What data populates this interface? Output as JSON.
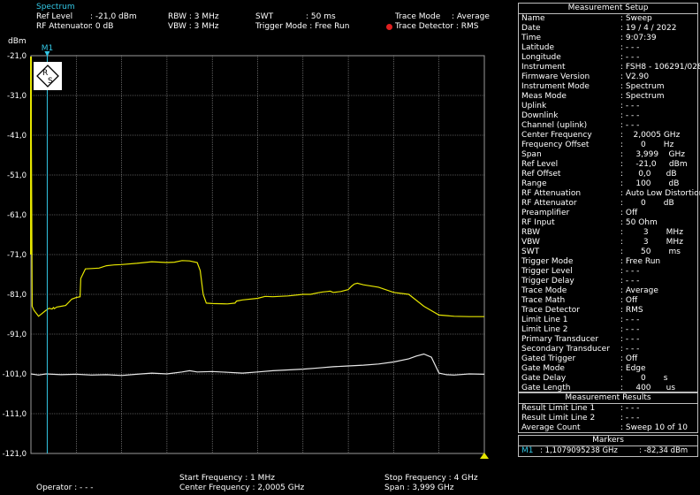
{
  "header": {
    "mode": "Spectrum",
    "ref_level_label": "Ref Level",
    "ref_level_value": ": -21,0 dBm",
    "rf_att_label": "RF Attenuator",
    "rf_att_value": ":  0   dB",
    "rbw": "RBW : 3 MHz",
    "vbw": "VBW : 3 MHz",
    "swt_label": "SWT",
    "swt_value": ": 50 ms",
    "trigger": "Trigger Mode : Free Run",
    "trace_mode_label": "Trace Mode",
    "trace_mode_value": ": Average",
    "trace_detector": "Trace Detector : RMS",
    "unit": "dBm"
  },
  "chart_data": {
    "type": "line",
    "yticks": [
      "-21,0",
      "-31,0",
      "-41,0",
      "-51,0",
      "-61,0",
      "-71,0",
      "-81,0",
      "-91,0",
      "-101,0",
      "-111,0",
      "-121,0"
    ],
    "ylim": [
      -121,
      -21
    ],
    "xlim": [
      1,
      4
    ],
    "marker": {
      "label": "M1",
      "freq_ghz": 1.1079,
      "level_dbm": -82.34
    },
    "series": [
      {
        "color": "#e6e600",
        "x": [
          1,
          1.005,
          1.008,
          1.02,
          1.05,
          1.1,
          1.12,
          1.14,
          1.15,
          1.155,
          1.17,
          1.2,
          1.23,
          1.25,
          1.27,
          1.3,
          1.325,
          1.33,
          1.36,
          1.4,
          1.45,
          1.5,
          1.55,
          1.6,
          1.7,
          1.8,
          1.9,
          1.95,
          2.0,
          2.05,
          2.1,
          2.12,
          2.14,
          2.16,
          2.2,
          2.3,
          2.35,
          2.36,
          2.4,
          2.5,
          2.55,
          2.6,
          2.7,
          2.8,
          2.85,
          2.9,
          2.93,
          2.96,
          2.98,
          3.0,
          3.05,
          3.1,
          3.12,
          3.14,
          3.16,
          3.18,
          3.2,
          3.3,
          3.4,
          3.5,
          3.6,
          3.7,
          3.8,
          3.9,
          4.0
        ],
        "y": [
          -23,
          -60,
          -84,
          -85,
          -86.5,
          -85,
          -84.5,
          -84.7,
          -84.3,
          -84.6,
          -84.2,
          -84.0,
          -83.8,
          -83.0,
          -82.2,
          -81.8,
          -81.6,
          -77,
          -74.6,
          -74.5,
          -74.4,
          -73.8,
          -73.6,
          -73.5,
          -73.2,
          -72.8,
          -73.0,
          -72.9,
          -72.5,
          -72.6,
          -73.0,
          -75,
          -81,
          -83.2,
          -83.3,
          -83.4,
          -83.2,
          -82.7,
          -82.4,
          -82.0,
          -81.5,
          -81.6,
          -81.4,
          -81.0,
          -81.0,
          -80.6,
          -80.4,
          -80.3,
          -80.2,
          -80.5,
          -80.3,
          -79.8,
          -79.0,
          -78.4,
          -78.2,
          -78.4,
          -78.6,
          -79.2,
          -80.5,
          -81,
          -84,
          -86.2,
          -86.5,
          -86.6,
          -86.6
        ]
      },
      {
        "color": "#e8e8e8",
        "x": [
          1,
          1.05,
          1.1,
          1.2,
          1.3,
          1.4,
          1.5,
          1.6,
          1.7,
          1.8,
          1.9,
          2.0,
          2.05,
          2.1,
          2.2,
          2.3,
          2.4,
          2.5,
          2.6,
          2.7,
          2.8,
          2.9,
          3.0,
          3.1,
          3.2,
          3.3,
          3.4,
          3.5,
          3.55,
          3.6,
          3.65,
          3.7,
          3.75,
          3.8,
          3.9,
          4.0
        ],
        "y": [
          -101,
          -101.3,
          -101.0,
          -101.2,
          -101.1,
          -101.3,
          -101.2,
          -101.4,
          -101.1,
          -100.8,
          -101.0,
          -100.5,
          -100.2,
          -100.5,
          -100.4,
          -100.6,
          -100.8,
          -100.5,
          -100.2,
          -100.0,
          -99.8,
          -99.5,
          -99.2,
          -99.0,
          -98.8,
          -98.5,
          -98.0,
          -97.2,
          -96.5,
          -96.0,
          -96.8,
          -100.8,
          -101.2,
          -101.3,
          -101.0,
          -101.1
        ]
      }
    ]
  },
  "footer": {
    "operator": "Operator : - - -",
    "start_freq": "Start Frequency  :  1      MHz",
    "center_freq": "Center Frequency : 2,0005 GHz",
    "stop_freq": "Stop Frequency : 4      GHz",
    "span": "Span              : 3,999 GHz"
  },
  "setup": {
    "title": "Measurement Setup",
    "rows": [
      {
        "l": "Name",
        "v": ": Sweep"
      },
      {
        "l": "Date",
        "v": ": 19 / 4 / 2022"
      },
      {
        "l": "Time",
        "v": ": 9:07:39"
      },
      {
        "l": "Latitude",
        "v": ": - - -"
      },
      {
        "l": "Longitude",
        "v": ": - - -"
      },
      {
        "l": "Instrument",
        "v": ": FSH8 - 106291/028"
      },
      {
        "l": "Firmware Version",
        "v": ": V2.90"
      },
      {
        "l": "Instrument Mode",
        "v": ": Spectrum"
      },
      {
        "l": "Meas Mode",
        "v": ": Spectrum"
      },
      {
        "l": "Uplink",
        "v": ": - - -"
      },
      {
        "l": "Downlink",
        "v": ": - - -"
      },
      {
        "l": "Channel (uplink)",
        "v": ": - - -"
      },
      {
        "l": "Center Frequency",
        "v": ":    2,0005 GHz"
      },
      {
        "l": "Frequency Offset",
        "v": ":       0       Hz"
      },
      {
        "l": "Span",
        "v": ":     3,999    GHz"
      },
      {
        "l": "Ref Level",
        "v": ":     -21,0     dBm"
      },
      {
        "l": "Ref Offset",
        "v": ":      0,0      dB"
      },
      {
        "l": "Range",
        "v": ":     100       dB"
      },
      {
        "l": "RF Attenuation",
        "v": ": Auto Low Distortion"
      },
      {
        "l": "RF Attenuator",
        "v": ":       0       dB"
      },
      {
        "l": "Preamplifier",
        "v": ": Off"
      },
      {
        "l": "RF Input",
        "v": ": 50 Ohm"
      },
      {
        "l": "RBW",
        "v": ":        3       MHz"
      },
      {
        "l": "VBW",
        "v": ":        3       MHz"
      },
      {
        "l": "SWT",
        "v": ":       50       ms"
      },
      {
        "l": "Trigger Mode",
        "v": ": Free Run"
      },
      {
        "l": "Trigger Level",
        "v": ": - - -"
      },
      {
        "l": "Trigger Delay",
        "v": ": - - -"
      },
      {
        "l": "Trace Mode",
        "v": ": Average"
      },
      {
        "l": "Trace Math",
        "v": ": Off"
      },
      {
        "l": "Trace Detector",
        "v": ": RMS"
      },
      {
        "l": "Limit Line 1",
        "v": ": - - -"
      },
      {
        "l": "Limit Line 2",
        "v": ": - - -"
      },
      {
        "l": "Primary Transducer",
        "v": ": - - -"
      },
      {
        "l": "Secondary Transducer",
        "v": ": - - -"
      },
      {
        "l": "Gated Trigger",
        "v": ": Off"
      },
      {
        "l": "Gate Mode",
        "v": ": Edge"
      },
      {
        "l": "Gate Delay",
        "v": ":       0       s"
      },
      {
        "l": "Gate Length",
        "v": ":     400      us"
      }
    ]
  },
  "results": {
    "title": "Measurement Results",
    "rows": [
      {
        "l": "Result Limit Line 1",
        "v": ": - - -"
      },
      {
        "l": "Result Limit Line 2",
        "v": ": - - -"
      },
      {
        "l": "Average Count",
        "v": ": Sweep 10 of 10"
      }
    ]
  },
  "markers": {
    "title": "Markers",
    "m1_label": "M1",
    "m1_freq": ":    1,1079095238 GHz",
    "m1_level": ":    -82,34 dBm"
  }
}
